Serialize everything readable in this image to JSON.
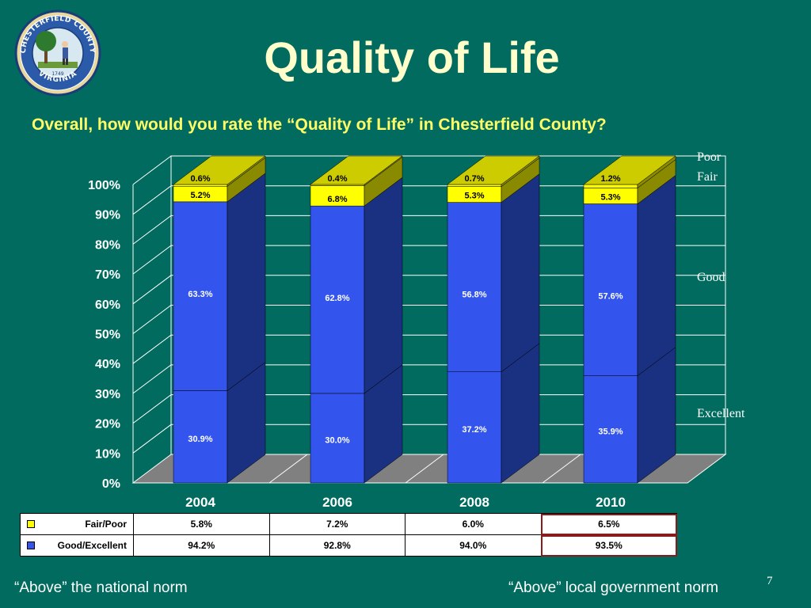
{
  "title": "Quality of Life",
  "question": "Overall, how would you rate the “Quality of Life” in Chesterfield County?",
  "seal": {
    "top_text": "CHESTERFIELD COUNTY",
    "bottom_text": "VIRGINIA",
    "year": "1749"
  },
  "colors": {
    "background": "#006b5e",
    "excellent": "#3355ee",
    "good": "#3355ee",
    "fair": "#ffff00",
    "poor": "#ffff00",
    "floor": "#808080"
  },
  "chart_data": {
    "type": "bar",
    "stacked": true,
    "categories": [
      "2004",
      "2006",
      "2008",
      "2010"
    ],
    "series": [
      {
        "name": "Excellent",
        "values": [
          30.9,
          30.0,
          37.2,
          35.9
        ],
        "labels": [
          "30.9%",
          "30.0%",
          "37.2%",
          "35.9%"
        ]
      },
      {
        "name": "Good",
        "values": [
          63.3,
          62.8,
          56.8,
          57.6
        ],
        "labels": [
          "63.3%",
          "62.8%",
          "56.8%",
          "57.6%"
        ]
      },
      {
        "name": "Fair",
        "values": [
          5.2,
          6.8,
          5.3,
          5.3
        ],
        "labels": [
          "5.2%",
          "6.8%",
          "5.3%",
          "5.3%"
        ]
      },
      {
        "name": "Poor",
        "values": [
          0.6,
          0.4,
          0.7,
          1.2
        ],
        "labels": [
          "0.6%",
          "0.4%",
          "0.7%",
          "1.2%"
        ]
      }
    ],
    "yticks": [
      "0%",
      "10%",
      "20%",
      "30%",
      "40%",
      "50%",
      "60%",
      "70%",
      "80%",
      "90%",
      "100%"
    ],
    "ylim": [
      0,
      100
    ],
    "grid": true,
    "legend_position": "right"
  },
  "table": {
    "rows": [
      {
        "label": "Fair/Poor",
        "swatch": "#ffff00",
        "values": [
          "5.8%",
          "7.2%",
          "6.0%",
          "6.5%"
        ]
      },
      {
        "label": "Good/Excellent",
        "swatch": "#3355ee",
        "values": [
          "94.2%",
          "92.8%",
          "94.0%",
          "93.5%"
        ]
      }
    ]
  },
  "footer": {
    "left": "“Above” the national norm",
    "right": "“Above” local government norm",
    "page": "7"
  }
}
